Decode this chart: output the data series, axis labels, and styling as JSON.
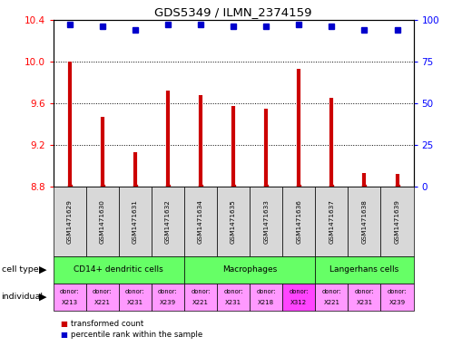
{
  "title": "GDS5349 / ILMN_2374159",
  "samples": [
    "GSM1471629",
    "GSM1471630",
    "GSM1471631",
    "GSM1471632",
    "GSM1471634",
    "GSM1471635",
    "GSM1471633",
    "GSM1471636",
    "GSM1471637",
    "GSM1471638",
    "GSM1471639"
  ],
  "transformed_counts": [
    10.0,
    9.47,
    9.13,
    9.72,
    9.68,
    9.57,
    9.55,
    9.93,
    9.65,
    8.93,
    8.92
  ],
  "percentile_ranks": [
    97,
    96,
    94,
    97,
    97,
    96,
    96,
    97,
    96,
    94,
    94
  ],
  "ylim": [
    8.8,
    10.4
  ],
  "yticks": [
    8.8,
    9.2,
    9.6,
    10.0,
    10.4
  ],
  "right_yticks": [
    0,
    25,
    50,
    75,
    100
  ],
  "right_ylim": [
    0,
    100
  ],
  "bar_color": "#cc0000",
  "dot_color": "#0000cc",
  "bg_color": "#d8d8d8",
  "cell_type_color": "#66ff66",
  "indiv_color_normal": "#ff99ff",
  "indiv_color_highlight": "#ff44ff",
  "legend_red_label": "transformed count",
  "legend_blue_label": "percentile rank within the sample",
  "cell_groups": [
    {
      "label": "CD14+ dendritic cells",
      "start": 0,
      "end": 4
    },
    {
      "label": "Macrophages",
      "start": 4,
      "end": 8
    },
    {
      "label": "Langerhans cells",
      "start": 8,
      "end": 11
    }
  ],
  "individuals": [
    {
      "donor": "X213",
      "highlight": false
    },
    {
      "donor": "X221",
      "highlight": false
    },
    {
      "donor": "X231",
      "highlight": false
    },
    {
      "donor": "X239",
      "highlight": false
    },
    {
      "donor": "X221",
      "highlight": false
    },
    {
      "donor": "X231",
      "highlight": false
    },
    {
      "donor": "X218",
      "highlight": false
    },
    {
      "donor": "X312",
      "highlight": true
    },
    {
      "donor": "X221",
      "highlight": false
    },
    {
      "donor": "X231",
      "highlight": false
    },
    {
      "donor": "X239",
      "highlight": false
    }
  ]
}
